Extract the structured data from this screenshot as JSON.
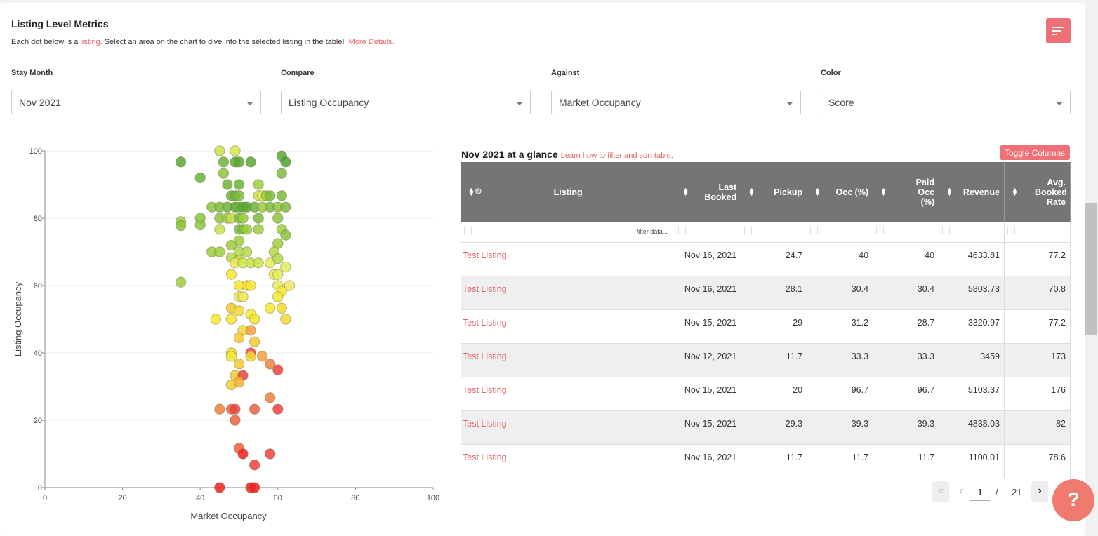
{
  "header": {
    "title": "Listing Level Metrics",
    "subtitle_prefix": "Each dot below is a ",
    "subtitle_link": "listing.",
    "subtitle_rest": " Select an area on the chart to dive into the selected listing in the table!",
    "more_details": "More Details."
  },
  "controls": [
    {
      "label": "Stay Month",
      "value": "Nov 2021"
    },
    {
      "label": "Compare",
      "value": "Listing Occupancy"
    },
    {
      "label": "Against",
      "value": "Market Occupancy"
    },
    {
      "label": "Color",
      "value": "Score"
    }
  ],
  "chart_data": {
    "type": "scatter",
    "xlabel": "Market Occupancy",
    "ylabel": "Listing Occupancy",
    "xlim": [
      0,
      100
    ],
    "ylim": [
      0,
      100
    ],
    "xticks": [
      "0",
      "20",
      "40",
      "60",
      "80",
      "100"
    ],
    "yticks": [
      "0",
      "20",
      "40",
      "60",
      "80",
      "100"
    ],
    "grid": "horizontal",
    "points": [
      {
        "x": 45,
        "y": 100,
        "c": "#c8e04a"
      },
      {
        "x": 49,
        "y": 100,
        "c": "#d6e84a"
      },
      {
        "x": 35,
        "y": 96.7,
        "c": "#5aa834"
      },
      {
        "x": 46,
        "y": 96.7,
        "c": "#6cb43a"
      },
      {
        "x": 49,
        "y": 96.7,
        "c": "#5fae36"
      },
      {
        "x": 50,
        "y": 96.7,
        "c": "#5aa834"
      },
      {
        "x": 53,
        "y": 96.7,
        "c": "#5aa834"
      },
      {
        "x": 61,
        "y": 98.5,
        "c": "#5aa834"
      },
      {
        "x": 62,
        "y": 96.7,
        "c": "#4fa030"
      },
      {
        "x": 40,
        "y": 92,
        "c": "#6cb43a"
      },
      {
        "x": 46,
        "y": 93.3,
        "c": "#8cc43e"
      },
      {
        "x": 61,
        "y": 93.3,
        "c": "#7cbc3c"
      },
      {
        "x": 47,
        "y": 90,
        "c": "#6cb43a"
      },
      {
        "x": 50,
        "y": 90,
        "c": "#6cb43a"
      },
      {
        "x": 55,
        "y": 90,
        "c": "#9ccc3e"
      },
      {
        "x": 48,
        "y": 86.7,
        "c": "#6cb43a"
      },
      {
        "x": 49,
        "y": 86.7,
        "c": "#6cb43a"
      },
      {
        "x": 50,
        "y": 86.7,
        "c": "#7cbc3c"
      },
      {
        "x": 55,
        "y": 86.7,
        "c": "#c8e04a"
      },
      {
        "x": 56,
        "y": 86.7,
        "c": "#eee85a"
      },
      {
        "x": 57,
        "y": 86.7,
        "c": "#9ccc3e"
      },
      {
        "x": 58,
        "y": 86.7,
        "c": "#7cbc3c"
      },
      {
        "x": 61,
        "y": 86.7,
        "c": "#7cbc3c"
      },
      {
        "x": 43,
        "y": 83.3,
        "c": "#8cc43e"
      },
      {
        "x": 45,
        "y": 83.3,
        "c": "#7cbc3c"
      },
      {
        "x": 47,
        "y": 83.3,
        "c": "#6cb43a"
      },
      {
        "x": 49,
        "y": 83.3,
        "c": "#5aa834"
      },
      {
        "x": 50,
        "y": 83.3,
        "c": "#6cb43a"
      },
      {
        "x": 51,
        "y": 83.3,
        "c": "#5aa834"
      },
      {
        "x": 52,
        "y": 83.3,
        "c": "#5aa834"
      },
      {
        "x": 54,
        "y": 83.3,
        "c": "#6cb43a"
      },
      {
        "x": 56,
        "y": 83.3,
        "c": "#9ccc3e"
      },
      {
        "x": 58,
        "y": 83.3,
        "c": "#7cbc3c"
      },
      {
        "x": 60,
        "y": 83.3,
        "c": "#8cc43e"
      },
      {
        "x": 62,
        "y": 83.3,
        "c": "#7cbc3c"
      },
      {
        "x": 40,
        "y": 80,
        "c": "#8cc43e"
      },
      {
        "x": 45,
        "y": 80,
        "c": "#8cc43e"
      },
      {
        "x": 47,
        "y": 80,
        "c": "#9ccc3e"
      },
      {
        "x": 48,
        "y": 80,
        "c": "#c8e04a"
      },
      {
        "x": 50,
        "y": 80,
        "c": "#7cbc3c"
      },
      {
        "x": 51,
        "y": 80,
        "c": "#9ccc3e"
      },
      {
        "x": 55,
        "y": 80,
        "c": "#7cbc3c"
      },
      {
        "x": 60,
        "y": 80,
        "c": "#8cc43e"
      },
      {
        "x": 35,
        "y": 79,
        "c": "#9ccc3e"
      },
      {
        "x": 35,
        "y": 77.8,
        "c": "#8cc43e"
      },
      {
        "x": 40,
        "y": 78,
        "c": "#8cc43e"
      },
      {
        "x": 45,
        "y": 76.7,
        "c": "#c8e04a"
      },
      {
        "x": 50,
        "y": 76.7,
        "c": "#7cbc3c"
      },
      {
        "x": 51,
        "y": 76.7,
        "c": "#7cbc3c"
      },
      {
        "x": 52,
        "y": 76.7,
        "c": "#9ccc3e"
      },
      {
        "x": 55,
        "y": 76.7,
        "c": "#9ccc3e"
      },
      {
        "x": 61,
        "y": 76.7,
        "c": "#9ccc3e"
      },
      {
        "x": 62,
        "y": 75,
        "c": "#8cc43e"
      },
      {
        "x": 50,
        "y": 73.3,
        "c": "#9ccc3e"
      },
      {
        "x": 48,
        "y": 72,
        "c": "#9ccc3e"
      },
      {
        "x": 60,
        "y": 72.5,
        "c": "#9ccc3e"
      },
      {
        "x": 43,
        "y": 70,
        "c": "#9ccc3e"
      },
      {
        "x": 45,
        "y": 70,
        "c": "#9ccc3e"
      },
      {
        "x": 50,
        "y": 70,
        "c": "#b4d84a"
      },
      {
        "x": 52,
        "y": 70,
        "c": "#b4d84a"
      },
      {
        "x": 59,
        "y": 70,
        "c": "#b4d84a"
      },
      {
        "x": 48,
        "y": 68.3,
        "c": "#b4d84a"
      },
      {
        "x": 50,
        "y": 67.5,
        "c": "#c8e04a"
      },
      {
        "x": 49,
        "y": 66.7,
        "c": "#eee85a"
      },
      {
        "x": 51,
        "y": 66.7,
        "c": "#d6e84a"
      },
      {
        "x": 53,
        "y": 66.7,
        "c": "#c8e04a"
      },
      {
        "x": 55,
        "y": 66.7,
        "c": "#c8e04a"
      },
      {
        "x": 58,
        "y": 66.7,
        "c": "#e4ec5a"
      },
      {
        "x": 60,
        "y": 68,
        "c": "#b4d84a"
      },
      {
        "x": 62,
        "y": 65.5,
        "c": "#e4ec5a"
      },
      {
        "x": 48,
        "y": 63.3,
        "c": "#f6e830"
      },
      {
        "x": 59,
        "y": 63.3,
        "c": "#eee85a"
      },
      {
        "x": 60,
        "y": 63.3,
        "c": "#e4ec5a"
      },
      {
        "x": 35,
        "y": 61,
        "c": "#9ccc3e"
      },
      {
        "x": 50,
        "y": 60,
        "c": "#f6e830"
      },
      {
        "x": 52,
        "y": 60,
        "c": "#f6d830"
      },
      {
        "x": 53,
        "y": 60,
        "c": "#f6e830"
      },
      {
        "x": 60,
        "y": 60,
        "c": "#e4ec5a"
      },
      {
        "x": 63,
        "y": 60,
        "c": "#eee85a"
      },
      {
        "x": 61,
        "y": 58.3,
        "c": "#f6e830"
      },
      {
        "x": 50,
        "y": 56.7,
        "c": "#eee85a"
      },
      {
        "x": 51,
        "y": 56.7,
        "c": "#eee85a"
      },
      {
        "x": 60,
        "y": 56.7,
        "c": "#f6e830"
      },
      {
        "x": 48,
        "y": 53.3,
        "c": "#f6c830"
      },
      {
        "x": 50,
        "y": 52.5,
        "c": "#f6d830"
      },
      {
        "x": 58,
        "y": 53.3,
        "c": "#f6e830"
      },
      {
        "x": 61,
        "y": 53.3,
        "c": "#f6d830"
      },
      {
        "x": 44,
        "y": 50,
        "c": "#f6e830"
      },
      {
        "x": 48,
        "y": 50,
        "c": "#f6e830"
      },
      {
        "x": 53,
        "y": 51.5,
        "c": "#f6e830"
      },
      {
        "x": 54,
        "y": 50,
        "c": "#f6e830"
      },
      {
        "x": 62,
        "y": 50,
        "c": "#f6d830"
      },
      {
        "x": 51,
        "y": 46.7,
        "c": "#f6d830"
      },
      {
        "x": 53,
        "y": 46.7,
        "c": "#f6a040"
      },
      {
        "x": 50,
        "y": 44.5,
        "c": "#f6c830"
      },
      {
        "x": 54,
        "y": 43.3,
        "c": "#f6c830"
      },
      {
        "x": 48,
        "y": 40,
        "c": "#f6d830"
      },
      {
        "x": 48,
        "y": 39,
        "c": "#f6e830"
      },
      {
        "x": 53,
        "y": 40,
        "c": "#f04040"
      },
      {
        "x": 53,
        "y": 39,
        "c": "#f6d830"
      },
      {
        "x": 56,
        "y": 39,
        "c": "#f6a040"
      },
      {
        "x": 50,
        "y": 36.7,
        "c": "#f6c830"
      },
      {
        "x": 58,
        "y": 36.7,
        "c": "#f08040"
      },
      {
        "x": 60,
        "y": 35,
        "c": "#f04040"
      },
      {
        "x": 49,
        "y": 33.3,
        "c": "#f6c830"
      },
      {
        "x": 51,
        "y": 33.3,
        "c": "#f04040"
      },
      {
        "x": 48,
        "y": 30.5,
        "c": "#f6c830"
      },
      {
        "x": 50,
        "y": 31.3,
        "c": "#f6b030"
      },
      {
        "x": 58,
        "y": 26.7,
        "c": "#f08040"
      },
      {
        "x": 45,
        "y": 23.3,
        "c": "#f08040"
      },
      {
        "x": 48,
        "y": 23.3,
        "c": "#f06040"
      },
      {
        "x": 49,
        "y": 23.3,
        "c": "#f04040"
      },
      {
        "x": 54,
        "y": 23.3,
        "c": "#f06040"
      },
      {
        "x": 60,
        "y": 23.3,
        "c": "#f04040"
      },
      {
        "x": 49,
        "y": 20,
        "c": "#f06040"
      },
      {
        "x": 50,
        "y": 11.7,
        "c": "#f06040"
      },
      {
        "x": 51,
        "y": 10,
        "c": "#f02020"
      },
      {
        "x": 58,
        "y": 10,
        "c": "#f04040"
      },
      {
        "x": 54,
        "y": 6.7,
        "c": "#f04040"
      },
      {
        "x": 45,
        "y": 0,
        "c": "#f02020"
      },
      {
        "x": 53,
        "y": 0,
        "c": "#f02020"
      },
      {
        "x": 54,
        "y": 0,
        "c": "#f02020"
      }
    ]
  },
  "table": {
    "title": "Nov 2021 at a glance",
    "title_link": "Learn how to filter and sort table.",
    "toggle_label": "Toggle Columns",
    "filter_placeholder": "filter data...",
    "columns": [
      "Listing",
      "Last Booked",
      "Pickup",
      "Occ (%)",
      "Paid Occ (%)",
      "Revenue",
      "Avg. Booked Rate"
    ],
    "rows": [
      [
        "Test Listing",
        "Nov 16, 2021",
        "24.7",
        "40",
        "40",
        "4633.81",
        "77.2"
      ],
      [
        "Test Listing",
        "Nov 16, 2021",
        "28.1",
        "30.4",
        "30.4",
        "5803.73",
        "70.8"
      ],
      [
        "Test Listing",
        "Nov 15, 2021",
        "29",
        "31.2",
        "28.7",
        "3320.97",
        "77.2"
      ],
      [
        "Test Listing",
        "Nov 12, 2021",
        "11.7",
        "33.3",
        "33.3",
        "3459",
        "173"
      ],
      [
        "Test Listing",
        "Nov 15, 2021",
        "20",
        "96.7",
        "96.7",
        "5103.37",
        "176"
      ],
      [
        "Test Listing",
        "Nov 15, 2021",
        "29.3",
        "39.3",
        "39.3",
        "4838.03",
        "82"
      ],
      [
        "Test Listing",
        "Nov 16, 2021",
        "11.7",
        "11.7",
        "11.7",
        "1100.01",
        "78.6"
      ]
    ]
  },
  "pager": {
    "current": "1",
    "separator": "/",
    "total": "21"
  },
  "help": {
    "label": "?"
  },
  "colors": {
    "accent": "#f07077",
    "link": "#e8646a",
    "header_bg": "#757575"
  }
}
